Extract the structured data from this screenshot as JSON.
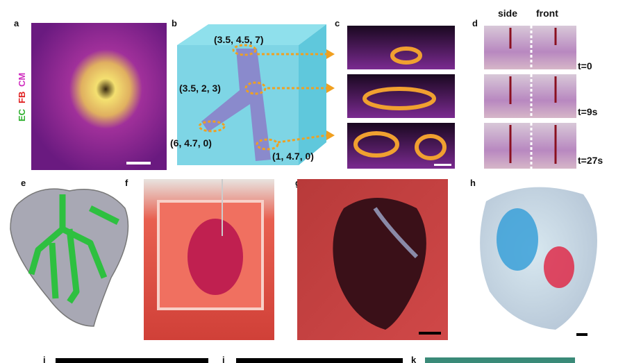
{
  "panels": {
    "a": {
      "label": "a",
      "stains": [
        "EC",
        "FB",
        "CM"
      ]
    },
    "b": {
      "label": "b",
      "points": [
        "(3.5, 4.5, 7)",
        "(3.5, 2, 3)",
        "(6, 4.7, 0)",
        "(1, 4.7, 0)"
      ]
    },
    "c": {
      "label": "c"
    },
    "d": {
      "label": "d",
      "columns": [
        "side",
        "front"
      ],
      "times": [
        "t=0",
        "t=9s",
        "t=27s"
      ]
    },
    "e": {
      "label": "e"
    },
    "f": {
      "label": "f"
    },
    "g": {
      "label": "g"
    },
    "h": {
      "label": "h"
    },
    "i": {
      "label": "i"
    },
    "j": {
      "label": "j"
    },
    "k": {
      "label": "k"
    }
  }
}
